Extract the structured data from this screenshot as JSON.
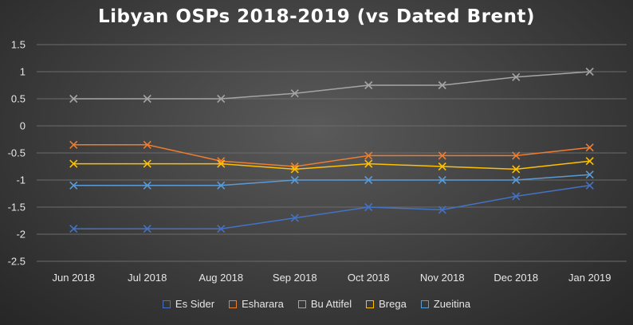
{
  "chart_data": {
    "type": "line",
    "title": "Libyan OSPs 2018-2019 (vs Dated Brent)",
    "categories": [
      "Jun 2018",
      "Jul 2018",
      "Aug 2018",
      "Sep 2018",
      "Oct 2018",
      "Nov 2018",
      "Dec 2018",
      "Jan 2019"
    ],
    "ylim": [
      -2.5,
      1.5
    ],
    "yticks": [
      1.5,
      1,
      0.5,
      0,
      -0.5,
      -1,
      -1.5,
      -2,
      -2.5
    ],
    "ytick_labels": [
      "1.5",
      "1",
      "0.5",
      "0",
      "-0.5",
      "-1",
      "-1.5",
      "-2",
      "-2.5"
    ],
    "grid": true,
    "legend_position": "bottom",
    "series": [
      {
        "name": "Es Sider",
        "color": "#4472c4",
        "values": [
          -1.9,
          -1.9,
          -1.9,
          -1.7,
          -1.5,
          -1.55,
          -1.3,
          -1.1
        ]
      },
      {
        "name": "Esharara",
        "color": "#ed7d31",
        "values": [
          -0.35,
          -0.35,
          -0.65,
          -0.75,
          -0.55,
          -0.55,
          -0.55,
          -0.4
        ]
      },
      {
        "name": "Bu Attifel",
        "color": "#a5a5a5",
        "values": [
          0.5,
          0.5,
          0.5,
          0.6,
          0.75,
          0.75,
          0.9,
          1.0
        ]
      },
      {
        "name": "Brega",
        "color": "#ffc000",
        "values": [
          -0.7,
          -0.7,
          -0.7,
          -0.8,
          -0.7,
          -0.75,
          -0.8,
          -0.65
        ]
      },
      {
        "name": "Zueitina",
        "color": "#5b9bd5",
        "values": [
          -1.1,
          -1.1,
          -1.1,
          -1.0,
          -1.0,
          -1.0,
          -1.0,
          -0.9
        ]
      }
    ]
  }
}
